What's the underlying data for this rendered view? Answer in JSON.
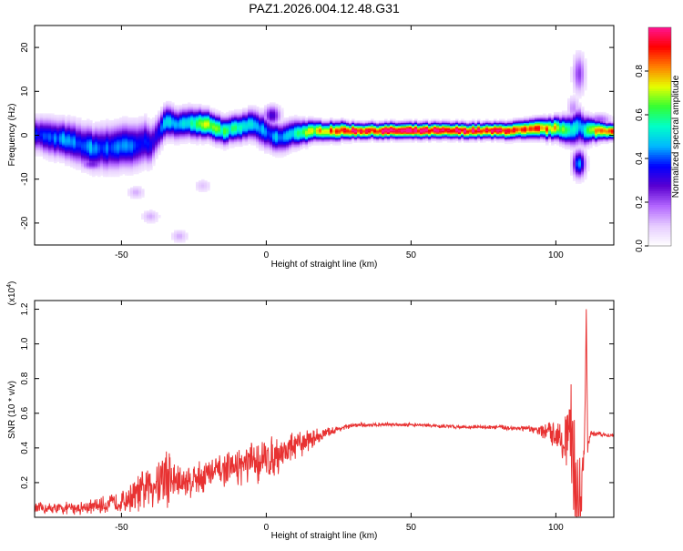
{
  "title": "PAZ1.2026.004.12.48.G31",
  "chart_data": [
    {
      "type": "heatmap",
      "name": "spectrogram",
      "xlabel": "Height of straight line (km)",
      "ylabel": "Frequency (Hz)",
      "xlim": [
        -80,
        120
      ],
      "ylim": [
        -25,
        25
      ],
      "xticks": [
        -50,
        0,
        50,
        100
      ],
      "yticks": [
        -20,
        -10,
        0,
        10,
        20
      ],
      "colorbar": {
        "label": "Normalized spectral amplitude",
        "range": [
          0,
          1
        ],
        "ticks": [
          0.0,
          0.2,
          0.4,
          0.6,
          0.8
        ],
        "colormap": [
          "#ffffff",
          "#e6ccff",
          "#b266ff",
          "#5a00d0",
          "#0000ff",
          "#00b8ff",
          "#00ffc8",
          "#33ff33",
          "#e6ff00",
          "#ff8000",
          "#ff0000",
          "#ff1493"
        ]
      },
      "ridge": {
        "x": [
          -80,
          -75,
          -70,
          -65,
          -60,
          -55,
          -50,
          -45,
          -42,
          -40,
          -38,
          -35,
          -30,
          -25,
          -20,
          -15,
          -10,
          -5,
          -2,
          0,
          3,
          6,
          10,
          15,
          20,
          25,
          30,
          40,
          50,
          60,
          70,
          80,
          90,
          95,
          100,
          105,
          108,
          110,
          113,
          116,
          120
        ],
        "frequency": [
          0.5,
          -0.5,
          -1.0,
          -2.0,
          -3.0,
          -3.0,
          -2.5,
          -2.5,
          -1.5,
          -2.0,
          -0.5,
          3.0,
          2.5,
          2.8,
          2.5,
          1.0,
          1.5,
          2.5,
          1.5,
          0.5,
          -0.5,
          -0.5,
          0.5,
          0.8,
          1.0,
          1.0,
          1.0,
          1.0,
          1.0,
          1.0,
          1.0,
          1.0,
          1.2,
          1.5,
          1.5,
          1.2,
          2.0,
          1.0,
          1.2,
          1.0,
          1.0
        ],
        "amplitude": [
          0.35,
          0.4,
          0.45,
          0.4,
          0.45,
          0.4,
          0.45,
          0.4,
          0.35,
          0.35,
          0.35,
          0.45,
          0.5,
          0.55,
          0.7,
          0.6,
          0.55,
          0.5,
          0.45,
          0.4,
          0.45,
          0.45,
          0.55,
          0.7,
          0.8,
          0.88,
          0.93,
          0.97,
          0.98,
          0.98,
          0.97,
          0.95,
          0.9,
          0.85,
          0.75,
          0.6,
          0.45,
          0.5,
          0.75,
          0.88,
          0.9
        ],
        "spread": [
          2.2,
          2.5,
          2.5,
          2.8,
          2.8,
          3.0,
          3.0,
          3.0,
          3.0,
          2.8,
          2.5,
          2.2,
          2.0,
          2.0,
          1.8,
          1.8,
          1.8,
          2.0,
          2.2,
          2.2,
          2.0,
          2.0,
          1.8,
          1.4,
          1.2,
          1.2,
          1.0,
          1.0,
          1.0,
          1.0,
          1.0,
          1.0,
          1.2,
          1.3,
          1.5,
          2.0,
          2.5,
          2.0,
          1.5,
          1.2,
          1.0
        ]
      },
      "blobs": [
        {
          "x": -60,
          "f": -6.5,
          "amp": 0.25,
          "sx": 3,
          "sf": 1.0
        },
        {
          "x": -52,
          "f": -5.0,
          "amp": 0.2,
          "sx": 2,
          "sf": 1.0
        },
        {
          "x": -45,
          "f": -13.0,
          "amp": 0.12,
          "sx": 2,
          "sf": 1.0
        },
        {
          "x": -40,
          "f": -18.5,
          "amp": 0.12,
          "sx": 2,
          "sf": 1.0
        },
        {
          "x": -30,
          "f": -23.0,
          "amp": 0.12,
          "sx": 2,
          "sf": 1.0
        },
        {
          "x": -22,
          "f": -11.5,
          "amp": 0.1,
          "sx": 2,
          "sf": 1.0
        },
        {
          "x": 2,
          "f": 4.5,
          "amp": 0.3,
          "sx": 2,
          "sf": 1.5
        },
        {
          "x": 108,
          "f": 14.0,
          "amp": 0.22,
          "sx": 1.5,
          "sf": 3.0
        },
        {
          "x": 108,
          "f": -6.5,
          "amp": 0.45,
          "sx": 1.5,
          "sf": 2.0
        },
        {
          "x": 106,
          "f": 6.0,
          "amp": 0.15,
          "sx": 1.5,
          "sf": 2.0
        },
        {
          "x": 115,
          "f": 3.5,
          "amp": 0.2,
          "sx": 3,
          "sf": 1.0
        }
      ]
    },
    {
      "type": "line",
      "name": "snr",
      "xlabel": "Height of straight line (km)",
      "ylabel": "SNR (10 * v/v)",
      "yscale_label": "(x10",
      "yscale_exponent": "4",
      "yscale_close": ")",
      "xlim": [
        -80,
        120
      ],
      "ylim": [
        0,
        1.25
      ],
      "xticks": [
        -50,
        0,
        50,
        100
      ],
      "yticks": [
        0.2,
        0.4,
        0.6,
        0.8,
        1.0,
        1.2
      ],
      "color": "#e83232",
      "series": [
        {
          "name": "SNR",
          "x": [
            -80,
            -70,
            -60,
            -50,
            -45,
            -40,
            -37,
            -35,
            -33,
            -30,
            -25,
            -20,
            -15,
            -10,
            -5,
            0,
            5,
            10,
            15,
            20,
            25,
            30,
            40,
            50,
            60,
            70,
            80,
            90,
            95,
            100,
            103,
            105,
            106,
            107,
            108,
            109,
            110,
            110.5,
            111,
            112,
            115,
            120
          ],
          "values": [
            0.05,
            0.05,
            0.06,
            0.09,
            0.13,
            0.18,
            0.22,
            0.24,
            0.22,
            0.2,
            0.22,
            0.25,
            0.27,
            0.29,
            0.31,
            0.33,
            0.37,
            0.41,
            0.45,
            0.48,
            0.51,
            0.53,
            0.535,
            0.535,
            0.525,
            0.52,
            0.52,
            0.51,
            0.5,
            0.48,
            0.47,
            0.46,
            0.35,
            0.2,
            0.1,
            0.15,
            0.5,
            1.2,
            0.4,
            0.48,
            0.48,
            0.47
          ],
          "noise": [
            0.04,
            0.04,
            0.05,
            0.07,
            0.12,
            0.15,
            0.2,
            0.26,
            0.2,
            0.12,
            0.12,
            0.12,
            0.1,
            0.12,
            0.14,
            0.15,
            0.12,
            0.1,
            0.07,
            0.04,
            0.02,
            0.015,
            0.012,
            0.012,
            0.012,
            0.012,
            0.015,
            0.02,
            0.04,
            0.1,
            0.2,
            0.35,
            0.4,
            0.4,
            0.3,
            0.2,
            0.1,
            0.0,
            0.05,
            0.02,
            0.015,
            0.01
          ]
        }
      ]
    }
  ]
}
